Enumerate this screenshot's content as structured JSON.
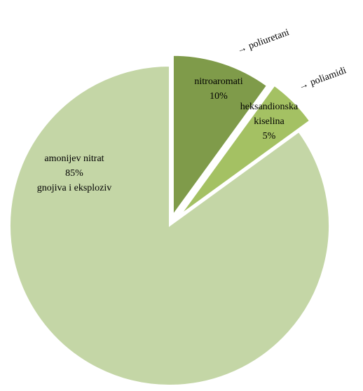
{
  "chart_data": {
    "type": "pie",
    "exploded": true,
    "slices": [
      {
        "label": "amonijev nitrat",
        "value": 85,
        "pct_text": "85%",
        "sublabel": "gnojiva i eksploziv",
        "color": "#c4d6a6"
      },
      {
        "label": "nitroaromati",
        "value": 10,
        "pct_text": "10%",
        "color": "#7f9b4a"
      },
      {
        "label": "heksandionska kiselina",
        "label_lines": [
          "heksandionska",
          "kiselina"
        ],
        "value": 5,
        "pct_text": "5%",
        "color": "#a4c163"
      }
    ],
    "callouts": [
      {
        "slice": "nitroaromati",
        "text": "→ poliuretani"
      },
      {
        "slice": "heksandionska kiselina",
        "text": "→ poliamidi"
      }
    ]
  }
}
